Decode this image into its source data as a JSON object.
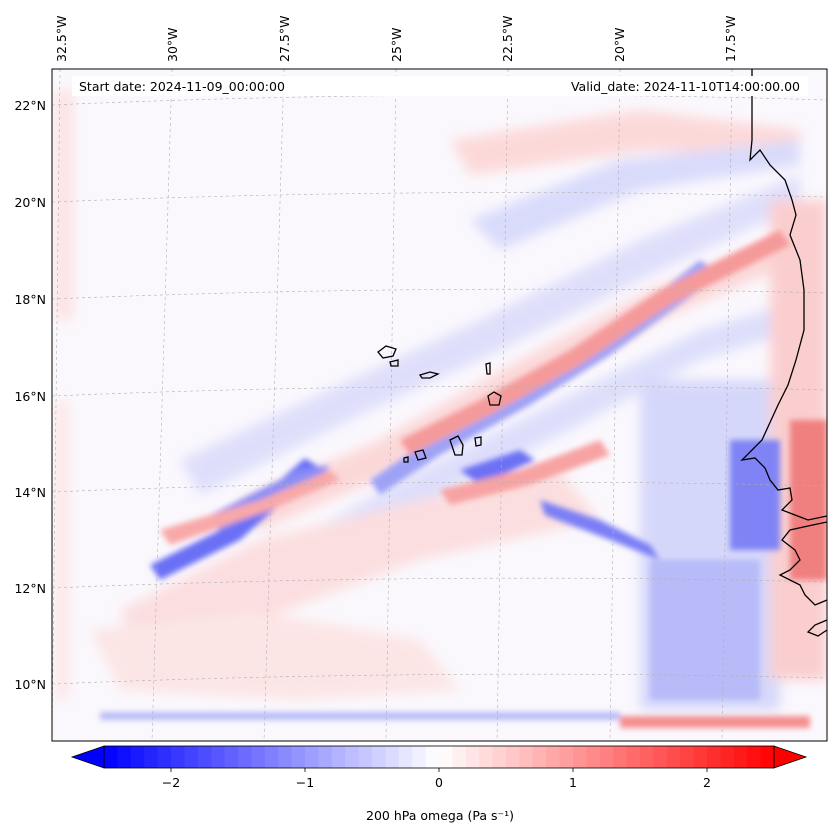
{
  "map": {
    "start_date_label": "Start date: 2024-11-09_00:00:00",
    "valid_date_label": "Valid_date: 2024-11-10T14:00:00.00",
    "lon_labels": [
      "32.5°W",
      "30°W",
      "27.5°W",
      "25°W",
      "22.5°W",
      "20°W",
      "17.5°W"
    ],
    "lat_labels": [
      "22°N",
      "20°N",
      "18°N",
      "16°N",
      "14°N",
      "12°N",
      "10°N"
    ],
    "colormap": "bwr",
    "colors": {
      "negative": "#0000ff",
      "neutral": "#ffffff",
      "positive": "#ff0000",
      "coastline": "#000000",
      "grid": "#b0b0b0"
    }
  },
  "colorbar": {
    "label": "200 hPa omega (Pa s⁻¹)",
    "ticks": [
      "−2",
      "−1",
      "0",
      "1",
      "2"
    ],
    "tick_values": [
      -2,
      -1,
      0,
      1,
      2
    ],
    "range": [
      -2.5,
      2.5
    ],
    "extend": "both"
  }
}
